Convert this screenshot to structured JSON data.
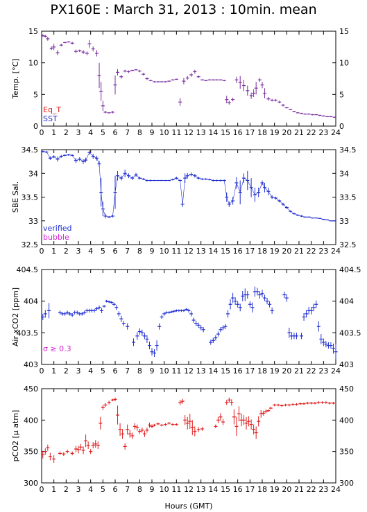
{
  "title": "PX160E : March 31, 2013 : 10min. mean",
  "xlabel": "Hours (GMT)",
  "colors": {
    "blue": "#1f2ed0",
    "red": "#e01818",
    "magenta": "#d020d0",
    "purple": "#7a2aa0"
  },
  "chart_data": [
    {
      "type": "scatter",
      "ylabel": "Temp. [°C]",
      "xlim": [
        0,
        24
      ],
      "ylim": [
        0,
        15
      ],
      "yticks": [
        0,
        5,
        10,
        15
      ],
      "legend": [
        {
          "name": "Eq_T",
          "color": "#e01818"
        },
        {
          "name": "SST",
          "color": "#1f2ed0"
        }
      ],
      "x": [
        0.1,
        0.3,
        0.5,
        0.8,
        1.0,
        1.3,
        1.6,
        1.9,
        2.2,
        2.5,
        2.8,
        3.1,
        3.4,
        3.7,
        3.9,
        4.2,
        4.5,
        4.7,
        4.85,
        5.0,
        5.2,
        5.5,
        5.8,
        6.0,
        6.2,
        6.5,
        6.8,
        7.1,
        7.4,
        7.7,
        8.0,
        8.3,
        8.6,
        8.9,
        9.2,
        9.5,
        9.8,
        10.1,
        10.4,
        10.7,
        11.0,
        11.3,
        11.6,
        11.9,
        12.2,
        12.5,
        12.8,
        13.1,
        13.4,
        13.7,
        14.0,
        14.3,
        14.6,
        14.9,
        15.1,
        15.3,
        15.6,
        15.9,
        16.2,
        16.5,
        16.8,
        17.1,
        17.3,
        17.5,
        17.8,
        18.0,
        18.2,
        18.5,
        18.8,
        19.1,
        19.4,
        19.7,
        20.0,
        20.3,
        20.6,
        20.9,
        21.2,
        21.5,
        21.8,
        22.1,
        22.4,
        22.7,
        23.0,
        23.3,
        23.6,
        23.9
      ],
      "y": [
        14.3,
        14.2,
        13.8,
        12.3,
        12.5,
        11.6,
        12.8,
        13.2,
        13.3,
        13.1,
        11.8,
        11.9,
        11.7,
        11.5,
        13.0,
        12.2,
        11.5,
        8.0,
        5.5,
        3.2,
        2.2,
        2.1,
        2.2,
        6.5,
        8.5,
        7.8,
        8.7,
        8.6,
        8.8,
        8.9,
        8.7,
        8.2,
        7.5,
        7.2,
        7.0,
        7.0,
        7.0,
        7.0,
        7.1,
        7.3,
        7.4,
        3.8,
        7.1,
        7.6,
        8.1,
        8.6,
        7.8,
        7.3,
        7.2,
        7.3,
        7.3,
        7.3,
        7.3,
        7.2,
        4.2,
        3.7,
        4.2,
        7.3,
        6.9,
        6.4,
        5.6,
        4.8,
        5.2,
        6.0,
        7.3,
        6.5,
        5.2,
        4.3,
        4.1,
        4.1,
        3.8,
        3.3,
        2.9,
        2.6,
        2.3,
        2.1,
        2.0,
        1.9,
        1.9,
        1.8,
        1.8,
        1.7,
        1.6,
        1.5,
        1.5,
        1.4
      ],
      "err": [
        0.2,
        0.2,
        0.3,
        0.3,
        0.5,
        0.4,
        0.2,
        0.1,
        0.1,
        0.2,
        0.3,
        0.2,
        0.3,
        0.3,
        0.6,
        0.4,
        0.5,
        2.0,
        1.5,
        0.8,
        0.2,
        0.1,
        0.2,
        1.5,
        0.5,
        0.3,
        0.2,
        0.2,
        0.1,
        0.1,
        0.2,
        0.2,
        0.2,
        0.1,
        0.1,
        0.1,
        0.1,
        0.1,
        0.1,
        0.1,
        0.1,
        0.6,
        0.5,
        0.3,
        0.3,
        0.3,
        0.2,
        0.1,
        0.1,
        0.1,
        0.1,
        0.1,
        0.1,
        0.1,
        0.6,
        0.3,
        0.3,
        0.5,
        1.0,
        0.9,
        0.8,
        0.5,
        0.6,
        1.0,
        0.3,
        0.5,
        0.8,
        0.3,
        0.2,
        0.2,
        0.2,
        0.2,
        0.1,
        0.1,
        0.1,
        0.1,
        0.1,
        0.1,
        0.1,
        0.1,
        0.1,
        0.1,
        0.1,
        0.1,
        0.1,
        0.1
      ]
    },
    {
      "type": "scatter",
      "ylabel": "SBE Sal.",
      "xlim": [
        0,
        24
      ],
      "ylim": [
        32.5,
        34.5
      ],
      "yticks": [
        32.5,
        33,
        33.5,
        34,
        34.5
      ],
      "legend": [
        {
          "name": "verified",
          "color": "#1f2ed0"
        },
        {
          "name": "bubble",
          "color": "#d020d0"
        }
      ],
      "x": [
        0.1,
        0.4,
        0.7,
        1.0,
        1.3,
        1.6,
        1.9,
        2.2,
        2.5,
        2.8,
        3.1,
        3.4,
        3.6,
        3.9,
        4.2,
        4.5,
        4.7,
        4.85,
        5.0,
        5.2,
        5.5,
        5.8,
        6.0,
        6.2,
        6.5,
        6.8,
        7.1,
        7.4,
        7.7,
        8.0,
        8.3,
        8.6,
        8.9,
        9.2,
        9.5,
        9.8,
        10.1,
        10.4,
        10.7,
        11.0,
        11.3,
        11.5,
        11.7,
        11.9,
        12.2,
        12.5,
        12.8,
        13.1,
        13.4,
        13.7,
        14.0,
        14.3,
        14.6,
        14.9,
        15.1,
        15.3,
        15.6,
        15.9,
        16.2,
        16.5,
        16.8,
        17.1,
        17.4,
        17.7,
        18.0,
        18.2,
        18.5,
        18.8,
        19.1,
        19.4,
        19.7,
        20.0,
        20.3,
        20.6,
        20.9,
        21.2,
        21.5,
        21.8,
        22.1,
        22.4,
        22.7,
        23.0,
        23.3,
        23.6,
        23.9
      ],
      "y": [
        34.46,
        34.45,
        34.32,
        34.35,
        34.3,
        34.36,
        34.38,
        34.39,
        34.38,
        34.27,
        34.3,
        34.25,
        34.28,
        34.44,
        34.36,
        34.32,
        34.2,
        33.6,
        33.25,
        33.1,
        33.08,
        33.1,
        33.6,
        33.95,
        33.9,
        34.0,
        33.95,
        33.9,
        33.97,
        33.9,
        33.88,
        33.85,
        33.85,
        33.85,
        33.85,
        33.85,
        33.85,
        33.85,
        33.87,
        33.9,
        33.85,
        33.35,
        33.9,
        33.95,
        33.98,
        33.95,
        33.9,
        33.88,
        33.88,
        33.87,
        33.85,
        33.85,
        33.85,
        33.85,
        33.5,
        33.35,
        33.42,
        33.8,
        33.6,
        33.9,
        33.85,
        33.7,
        33.55,
        33.6,
        33.8,
        33.7,
        33.62,
        33.5,
        33.48,
        33.42,
        33.35,
        33.28,
        33.2,
        33.15,
        33.12,
        33.1,
        33.08,
        33.08,
        33.06,
        33.06,
        33.05,
        33.03,
        33.02,
        33.0,
        33.0
      ],
      "err": [
        0.02,
        0.02,
        0.04,
        0.03,
        0.05,
        0.03,
        0.02,
        0.02,
        0.02,
        0.05,
        0.04,
        0.05,
        0.05,
        0.04,
        0.05,
        0.05,
        0.06,
        0.3,
        0.15,
        0.05,
        0.02,
        0.03,
        0.35,
        0.1,
        0.05,
        0.08,
        0.05,
        0.04,
        0.04,
        0.03,
        0.02,
        0.02,
        0.02,
        0.01,
        0.01,
        0.01,
        0.01,
        0.01,
        0.02,
        0.03,
        0.02,
        0.06,
        0.1,
        0.06,
        0.04,
        0.04,
        0.03,
        0.02,
        0.02,
        0.02,
        0.02,
        0.02,
        0.02,
        0.02,
        0.1,
        0.06,
        0.08,
        0.12,
        0.25,
        0.1,
        0.2,
        0.2,
        0.15,
        0.1,
        0.05,
        0.1,
        0.08,
        0.04,
        0.03,
        0.03,
        0.03,
        0.03,
        0.02,
        0.02,
        0.02,
        0.02,
        0.01,
        0.01,
        0.01,
        0.01,
        0.01,
        0.01,
        0.01,
        0.01,
        0.01
      ]
    },
    {
      "type": "scatter",
      "ylabel": "Air xCO2 [ppm]",
      "xlim": [
        0,
        24
      ],
      "ylim": [
        403,
        404.5
      ],
      "yticks": [
        403,
        403.5,
        404,
        404.5
      ],
      "annotation": "σ ≥ 0.3",
      "x": [
        0.1,
        0.3,
        0.6,
        1.5,
        1.7,
        1.9,
        2.1,
        2.3,
        2.5,
        2.7,
        2.9,
        3.1,
        3.3,
        3.5,
        3.7,
        3.9,
        4.1,
        4.3,
        4.5,
        4.7,
        4.9,
        5.1,
        5.3,
        5.5,
        5.7,
        5.9,
        6.1,
        6.3,
        6.5,
        6.7,
        7.0,
        7.5,
        7.8,
        8.0,
        8.2,
        8.4,
        8.6,
        8.8,
        9.0,
        9.2,
        9.4,
        9.6,
        9.8,
        10.0,
        10.2,
        10.4,
        10.6,
        10.8,
        11.0,
        11.2,
        11.4,
        11.6,
        11.8,
        12.0,
        12.2,
        12.4,
        12.6,
        12.8,
        13.0,
        13.2,
        13.8,
        14.0,
        14.2,
        14.4,
        14.6,
        14.8,
        15.0,
        15.2,
        15.4,
        15.6,
        15.8,
        16.0,
        16.2,
        16.4,
        16.6,
        16.8,
        17.0,
        17.2,
        17.4,
        17.6,
        17.8,
        18.0,
        18.2,
        18.4,
        18.6,
        18.8,
        19.8,
        20.0,
        20.2,
        20.4,
        20.6,
        20.8,
        21.2,
        21.4,
        21.6,
        21.8,
        22.0,
        22.2,
        22.4,
        22.6,
        22.8,
        23.0,
        23.2,
        23.4,
        23.6,
        23.8,
        24.0
      ],
      "y": [
        403.75,
        403.8,
        403.85,
        403.82,
        403.8,
        403.8,
        403.82,
        403.8,
        403.78,
        403.82,
        403.82,
        403.8,
        403.8,
        403.82,
        403.85,
        403.85,
        403.85,
        403.85,
        403.88,
        403.9,
        403.85,
        403.92,
        404.0,
        403.99,
        403.98,
        403.95,
        403.9,
        403.8,
        403.72,
        403.65,
        403.6,
        403.35,
        403.45,
        403.52,
        403.5,
        403.45,
        403.4,
        403.3,
        403.2,
        403.18,
        403.3,
        403.6,
        403.75,
        403.8,
        403.82,
        403.82,
        403.83,
        403.84,
        403.85,
        403.85,
        403.85,
        403.85,
        403.87,
        403.85,
        403.8,
        403.7,
        403.65,
        403.62,
        403.58,
        403.55,
        403.35,
        403.38,
        403.42,
        403.48,
        403.55,
        403.58,
        403.6,
        403.8,
        403.95,
        404.05,
        404.0,
        403.95,
        403.9,
        404.08,
        404.1,
        404.1,
        403.95,
        403.9,
        404.15,
        404.15,
        404.1,
        404.12,
        404.05,
        404.0,
        403.95,
        403.85,
        404.1,
        404.05,
        403.5,
        403.45,
        403.45,
        403.45,
        403.45,
        403.75,
        403.8,
        403.85,
        403.85,
        403.9,
        403.95,
        403.6,
        403.4,
        403.35,
        403.32,
        403.3,
        403.3,
        403.25,
        403.2
      ],
      "err": [
        0.05,
        0.06,
        0.12,
        0.03,
        0.03,
        0.03,
        0.03,
        0.03,
        0.03,
        0.03,
        0.03,
        0.03,
        0.03,
        0.03,
        0.03,
        0.03,
        0.03,
        0.03,
        0.03,
        0.03,
        0.04,
        0.02,
        0.02,
        0.02,
        0.02,
        0.03,
        0.04,
        0.04,
        0.05,
        0.04,
        0.05,
        0.06,
        0.06,
        0.05,
        0.05,
        0.05,
        0.06,
        0.06,
        0.06,
        0.06,
        0.08,
        0.05,
        0.03,
        0.03,
        0.02,
        0.02,
        0.02,
        0.02,
        0.02,
        0.02,
        0.02,
        0.02,
        0.02,
        0.03,
        0.04,
        0.04,
        0.04,
        0.04,
        0.04,
        0.04,
        0.04,
        0.04,
        0.04,
        0.04,
        0.04,
        0.04,
        0.04,
        0.06,
        0.08,
        0.08,
        0.06,
        0.05,
        0.06,
        0.08,
        0.1,
        0.06,
        0.05,
        0.08,
        0.08,
        0.06,
        0.06,
        0.06,
        0.05,
        0.05,
        0.05,
        0.05,
        0.05,
        0.06,
        0.08,
        0.06,
        0.05,
        0.05,
        0.05,
        0.06,
        0.06,
        0.06,
        0.06,
        0.06,
        0.06,
        0.08,
        0.08,
        0.06,
        0.05,
        0.05,
        0.05,
        0.08,
        0.12
      ]
    },
    {
      "type": "scatter",
      "ylabel": "pCO2 [μ atm]",
      "xlim": [
        0,
        24
      ],
      "ylim": [
        300,
        450
      ],
      "yticks": [
        300,
        350,
        400,
        450
      ],
      "x": [
        0.1,
        0.3,
        0.5,
        0.7,
        1.0,
        1.5,
        1.8,
        2.1,
        2.5,
        2.8,
        3.0,
        3.2,
        3.4,
        3.6,
        3.8,
        4.0,
        4.2,
        4.4,
        4.6,
        4.8,
        5.0,
        5.2,
        5.5,
        5.8,
        6.0,
        6.2,
        6.4,
        6.6,
        6.8,
        7.0,
        7.2,
        7.4,
        7.6,
        7.8,
        8.0,
        8.2,
        8.4,
        8.6,
        8.8,
        9.0,
        9.2,
        9.5,
        9.8,
        10.1,
        10.4,
        10.7,
        11.0,
        11.3,
        11.5,
        11.7,
        11.9,
        12.1,
        12.3,
        12.5,
        12.8,
        13.1,
        14.2,
        14.4,
        14.6,
        14.8,
        15.1,
        15.3,
        15.5,
        15.7,
        15.9,
        16.1,
        16.3,
        16.5,
        16.7,
        16.9,
        17.1,
        17.3,
        17.5,
        17.7,
        17.9,
        18.1,
        18.3,
        18.5,
        18.7,
        19.0,
        19.3,
        19.6,
        19.9,
        20.2,
        20.5,
        20.8,
        21.1,
        21.4,
        21.7,
        22.0,
        22.3,
        22.6,
        22.9,
        23.2,
        23.5,
        23.8
      ],
      "y": [
        345,
        350,
        356,
        342,
        338,
        347,
        346,
        350,
        347,
        354,
        353,
        357,
        352,
        367,
        360,
        350,
        360,
        362,
        360,
        395,
        420,
        424,
        428,
        432,
        433,
        408,
        385,
        378,
        358,
        385,
        378,
        375,
        390,
        388,
        382,
        384,
        378,
        384,
        392,
        390,
        392,
        394,
        392,
        393,
        395,
        393,
        393,
        428,
        430,
        400,
        395,
        398,
        388,
        382,
        385,
        386,
        390,
        400,
        405,
        397,
        428,
        432,
        428,
        405,
        390,
        410,
        400,
        400,
        395,
        398,
        393,
        385,
        380,
        398,
        410,
        411,
        414,
        415,
        419,
        424,
        424,
        423,
        424,
        424,
        425,
        425,
        426,
        426,
        427,
        427,
        427,
        428,
        428,
        428,
        427,
        427
      ],
      "err": [
        6,
        5,
        5,
        6,
        6,
        3,
        3,
        3,
        3,
        5,
        6,
        5,
        6,
        10,
        6,
        4,
        5,
        6,
        6,
        10,
        4,
        3,
        3,
        2,
        3,
        15,
        10,
        8,
        5,
        8,
        6,
        5,
        5,
        5,
        4,
        4,
        5,
        4,
        4,
        3,
        2,
        2,
        2,
        2,
        2,
        2,
        2,
        4,
        4,
        8,
        10,
        12,
        12,
        8,
        4,
        3,
        3,
        5,
        6,
        5,
        4,
        4,
        5,
        12,
        15,
        12,
        10,
        8,
        10,
        8,
        8,
        8,
        10,
        8,
        6,
        4,
        3,
        2,
        2,
        2,
        2,
        2,
        2,
        2,
        2,
        2,
        2,
        2,
        2,
        2,
        2,
        2,
        2,
        2,
        2,
        2
      ]
    }
  ]
}
